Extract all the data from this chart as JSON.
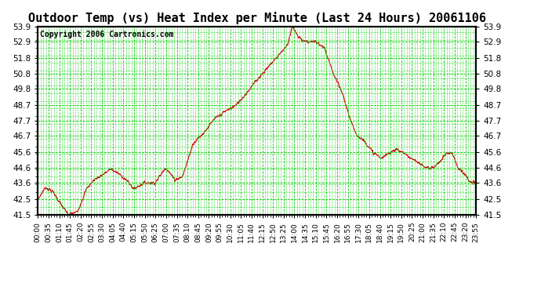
{
  "title": "Outdoor Temp (vs) Heat Index per Minute (Last 24 Hours) 20061106",
  "copyright": "Copyright 2006 Cartronics.com",
  "yticks": [
    41.5,
    42.5,
    43.6,
    44.6,
    45.6,
    46.7,
    47.7,
    48.7,
    49.8,
    50.8,
    51.8,
    52.9,
    53.9
  ],
  "ymin": 41.5,
  "ymax": 53.9,
  "line_color": "#cc0000",
  "bg_color": "#ffffff",
  "plot_bg_color": "#ffffff",
  "grid_color": "#00cc00",
  "title_fontsize": 11,
  "copyright_fontsize": 7,
  "xtick_labels": [
    "00:00",
    "00:35",
    "01:10",
    "01:45",
    "02:20",
    "02:55",
    "03:30",
    "04:05",
    "04:40",
    "05:15",
    "05:50",
    "06:25",
    "07:00",
    "07:35",
    "08:10",
    "08:45",
    "09:20",
    "09:55",
    "10:30",
    "11:05",
    "11:40",
    "12:15",
    "12:50",
    "13:25",
    "14:00",
    "14:35",
    "15:10",
    "15:45",
    "16:20",
    "16:55",
    "17:30",
    "18:05",
    "18:40",
    "19:15",
    "19:50",
    "20:25",
    "21:00",
    "21:35",
    "22:10",
    "22:45",
    "23:20",
    "23:55"
  ],
  "keypoints_t": [
    0,
    25,
    50,
    75,
    100,
    130,
    160,
    185,
    210,
    240,
    265,
    290,
    315,
    350,
    385,
    420,
    450,
    475,
    510,
    545,
    580,
    615,
    650,
    685,
    720,
    755,
    790,
    820,
    835,
    855,
    880,
    910,
    940,
    970,
    1000,
    1030,
    1050,
    1075,
    1100,
    1130,
    1155,
    1175,
    1200,
    1225,
    1250,
    1275,
    1300,
    1320,
    1340,
    1360,
    1380,
    1400,
    1420,
    1439
  ],
  "keypoints_v": [
    42.5,
    43.3,
    43.0,
    42.2,
    41.5,
    41.7,
    43.2,
    43.8,
    44.1,
    44.5,
    44.2,
    43.8,
    43.2,
    43.6,
    43.6,
    44.6,
    43.8,
    44.0,
    46.2,
    46.9,
    47.8,
    48.3,
    48.7,
    49.5,
    50.4,
    51.2,
    52.0,
    52.7,
    53.9,
    53.2,
    52.9,
    52.9,
    52.5,
    50.8,
    49.5,
    47.5,
    46.7,
    46.3,
    45.6,
    45.2,
    45.6,
    45.8,
    45.6,
    45.2,
    44.9,
    44.6,
    44.6,
    45.0,
    45.5,
    45.6,
    44.6,
    44.2,
    43.6,
    43.6
  ]
}
